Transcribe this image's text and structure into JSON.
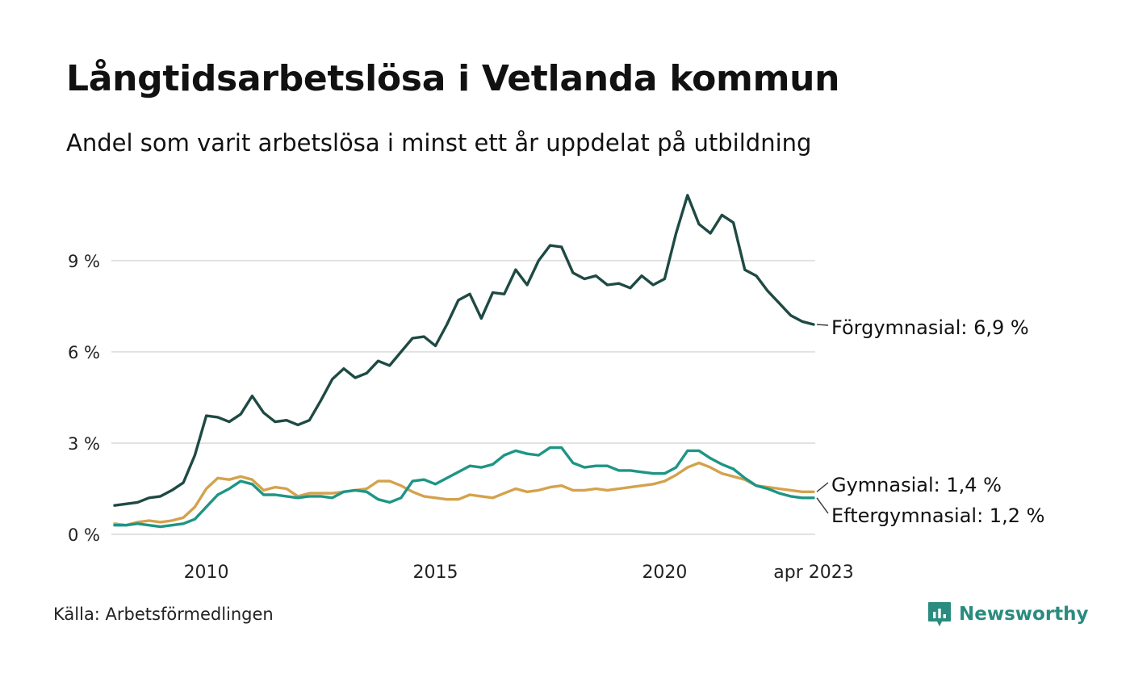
{
  "header": {
    "title": "Långtidsarbetslösa i Vetlanda kommun",
    "subtitle": "Andel som varit arbetslösa i minst ett år uppdelat på utbildning"
  },
  "footer": {
    "source": "Källa: Arbetsförmedlingen",
    "brand": "Newsworthy"
  },
  "chart_data": {
    "type": "line",
    "title": "Långtidsarbetslösa i Vetlanda kommun",
    "subtitle": "Andel som varit arbetslösa i minst ett år uppdelat på utbildning",
    "x_range": [
      2008.0,
      2023.25
    ],
    "ylim": [
      0,
      11.2
    ],
    "y_ticks": [
      0,
      3,
      6,
      9
    ],
    "y_tick_labels": [
      "0 %",
      "3 %",
      "6 %",
      "9 %"
    ],
    "x_ticks": [
      2010,
      2015,
      2020,
      2023.25
    ],
    "x_tick_labels": [
      "2010",
      "2015",
      "2020",
      "apr 2023"
    ],
    "grid": true,
    "series": [
      {
        "name": "Förgymnasial",
        "label": "Förgymnasial: 6,9 %",
        "color": "#1f4a44",
        "x": [
          2008.0,
          2008.25,
          2008.5,
          2008.75,
          2009.0,
          2009.25,
          2009.5,
          2009.75,
          2010.0,
          2010.25,
          2010.5,
          2010.75,
          2011.0,
          2011.25,
          2011.5,
          2011.75,
          2012.0,
          2012.25,
          2012.5,
          2012.75,
          2013.0,
          2013.25,
          2013.5,
          2013.75,
          2014.0,
          2014.25,
          2014.5,
          2014.75,
          2015.0,
          2015.25,
          2015.5,
          2015.75,
          2016.0,
          2016.25,
          2016.5,
          2016.75,
          2017.0,
          2017.25,
          2017.5,
          2017.75,
          2018.0,
          2018.25,
          2018.5,
          2018.75,
          2019.0,
          2019.25,
          2019.5,
          2019.75,
          2020.0,
          2020.25,
          2020.5,
          2020.75,
          2021.0,
          2021.25,
          2021.5,
          2021.75,
          2022.0,
          2022.25,
          2022.5,
          2022.75,
          2023.0,
          2023.25
        ],
        "values": [
          0.95,
          1.0,
          1.05,
          1.2,
          1.25,
          1.45,
          1.7,
          2.6,
          3.9,
          3.85,
          3.7,
          3.95,
          4.55,
          4.0,
          3.7,
          3.75,
          3.6,
          3.75,
          4.4,
          5.1,
          5.45,
          5.15,
          5.3,
          5.7,
          5.55,
          6.0,
          6.45,
          6.5,
          6.2,
          6.9,
          7.7,
          7.9,
          7.1,
          7.95,
          7.9,
          8.7,
          8.2,
          9.0,
          9.5,
          9.45,
          8.6,
          8.4,
          8.5,
          8.2,
          8.25,
          8.1,
          8.5,
          8.2,
          8.4,
          9.9,
          11.15,
          10.2,
          9.9,
          10.5,
          10.25,
          8.7,
          8.5,
          8.0,
          7.6,
          7.2,
          7.0,
          6.9
        ]
      },
      {
        "name": "Gymnasial",
        "label": "Gymnasial: 1,4 %",
        "color": "#d4a24c",
        "x": [
          2008.0,
          2008.25,
          2008.5,
          2008.75,
          2009.0,
          2009.25,
          2009.5,
          2009.75,
          2010.0,
          2010.25,
          2010.5,
          2010.75,
          2011.0,
          2011.25,
          2011.5,
          2011.75,
          2012.0,
          2012.25,
          2012.5,
          2012.75,
          2013.0,
          2013.25,
          2013.5,
          2013.75,
          2014.0,
          2014.25,
          2014.5,
          2014.75,
          2015.0,
          2015.25,
          2015.5,
          2015.75,
          2016.0,
          2016.25,
          2016.5,
          2016.75,
          2017.0,
          2017.25,
          2017.5,
          2017.75,
          2018.0,
          2018.25,
          2018.5,
          2018.75,
          2019.0,
          2019.25,
          2019.5,
          2019.75,
          2020.0,
          2020.25,
          2020.5,
          2020.75,
          2021.0,
          2021.25,
          2021.5,
          2021.75,
          2022.0,
          2022.25,
          2022.5,
          2022.75,
          2023.0,
          2023.25
        ],
        "values": [
          0.35,
          0.3,
          0.4,
          0.45,
          0.4,
          0.45,
          0.55,
          0.9,
          1.5,
          1.85,
          1.8,
          1.9,
          1.8,
          1.45,
          1.55,
          1.5,
          1.25,
          1.35,
          1.35,
          1.35,
          1.4,
          1.45,
          1.5,
          1.75,
          1.75,
          1.6,
          1.4,
          1.25,
          1.2,
          1.15,
          1.15,
          1.3,
          1.25,
          1.2,
          1.35,
          1.5,
          1.4,
          1.45,
          1.55,
          1.6,
          1.45,
          1.45,
          1.5,
          1.45,
          1.5,
          1.55,
          1.6,
          1.65,
          1.75,
          1.95,
          2.2,
          2.35,
          2.2,
          2.0,
          1.9,
          1.8,
          1.6,
          1.55,
          1.5,
          1.45,
          1.4,
          1.4
        ]
      },
      {
        "name": "Eftergymnasial",
        "label": "Eftergymnasial: 1,2 %",
        "color": "#1e9585",
        "x": [
          2008.0,
          2008.25,
          2008.5,
          2008.75,
          2009.0,
          2009.25,
          2009.5,
          2009.75,
          2010.0,
          2010.25,
          2010.5,
          2010.75,
          2011.0,
          2011.25,
          2011.5,
          2011.75,
          2012.0,
          2012.25,
          2012.5,
          2012.75,
          2013.0,
          2013.25,
          2013.5,
          2013.75,
          2014.0,
          2014.25,
          2014.5,
          2014.75,
          2015.0,
          2015.25,
          2015.5,
          2015.75,
          2016.0,
          2016.25,
          2016.5,
          2016.75,
          2017.0,
          2017.25,
          2017.5,
          2017.75,
          2018.0,
          2018.25,
          2018.5,
          2018.75,
          2019.0,
          2019.25,
          2019.5,
          2019.75,
          2020.0,
          2020.25,
          2020.5,
          2020.75,
          2021.0,
          2021.25,
          2021.5,
          2021.75,
          2022.0,
          2022.25,
          2022.5,
          2022.75,
          2023.0,
          2023.25
        ],
        "values": [
          0.3,
          0.3,
          0.35,
          0.3,
          0.25,
          0.3,
          0.35,
          0.5,
          0.9,
          1.3,
          1.5,
          1.75,
          1.65,
          1.3,
          1.3,
          1.25,
          1.2,
          1.25,
          1.25,
          1.2,
          1.4,
          1.45,
          1.4,
          1.15,
          1.05,
          1.2,
          1.75,
          1.8,
          1.65,
          1.85,
          2.05,
          2.25,
          2.2,
          2.3,
          2.6,
          2.75,
          2.65,
          2.6,
          2.85,
          2.85,
          2.35,
          2.2,
          2.25,
          2.25,
          2.1,
          2.1,
          2.05,
          2.0,
          2.0,
          2.2,
          2.75,
          2.75,
          2.5,
          2.3,
          2.15,
          1.85,
          1.6,
          1.5,
          1.35,
          1.25,
          1.2,
          1.2
        ]
      }
    ]
  }
}
